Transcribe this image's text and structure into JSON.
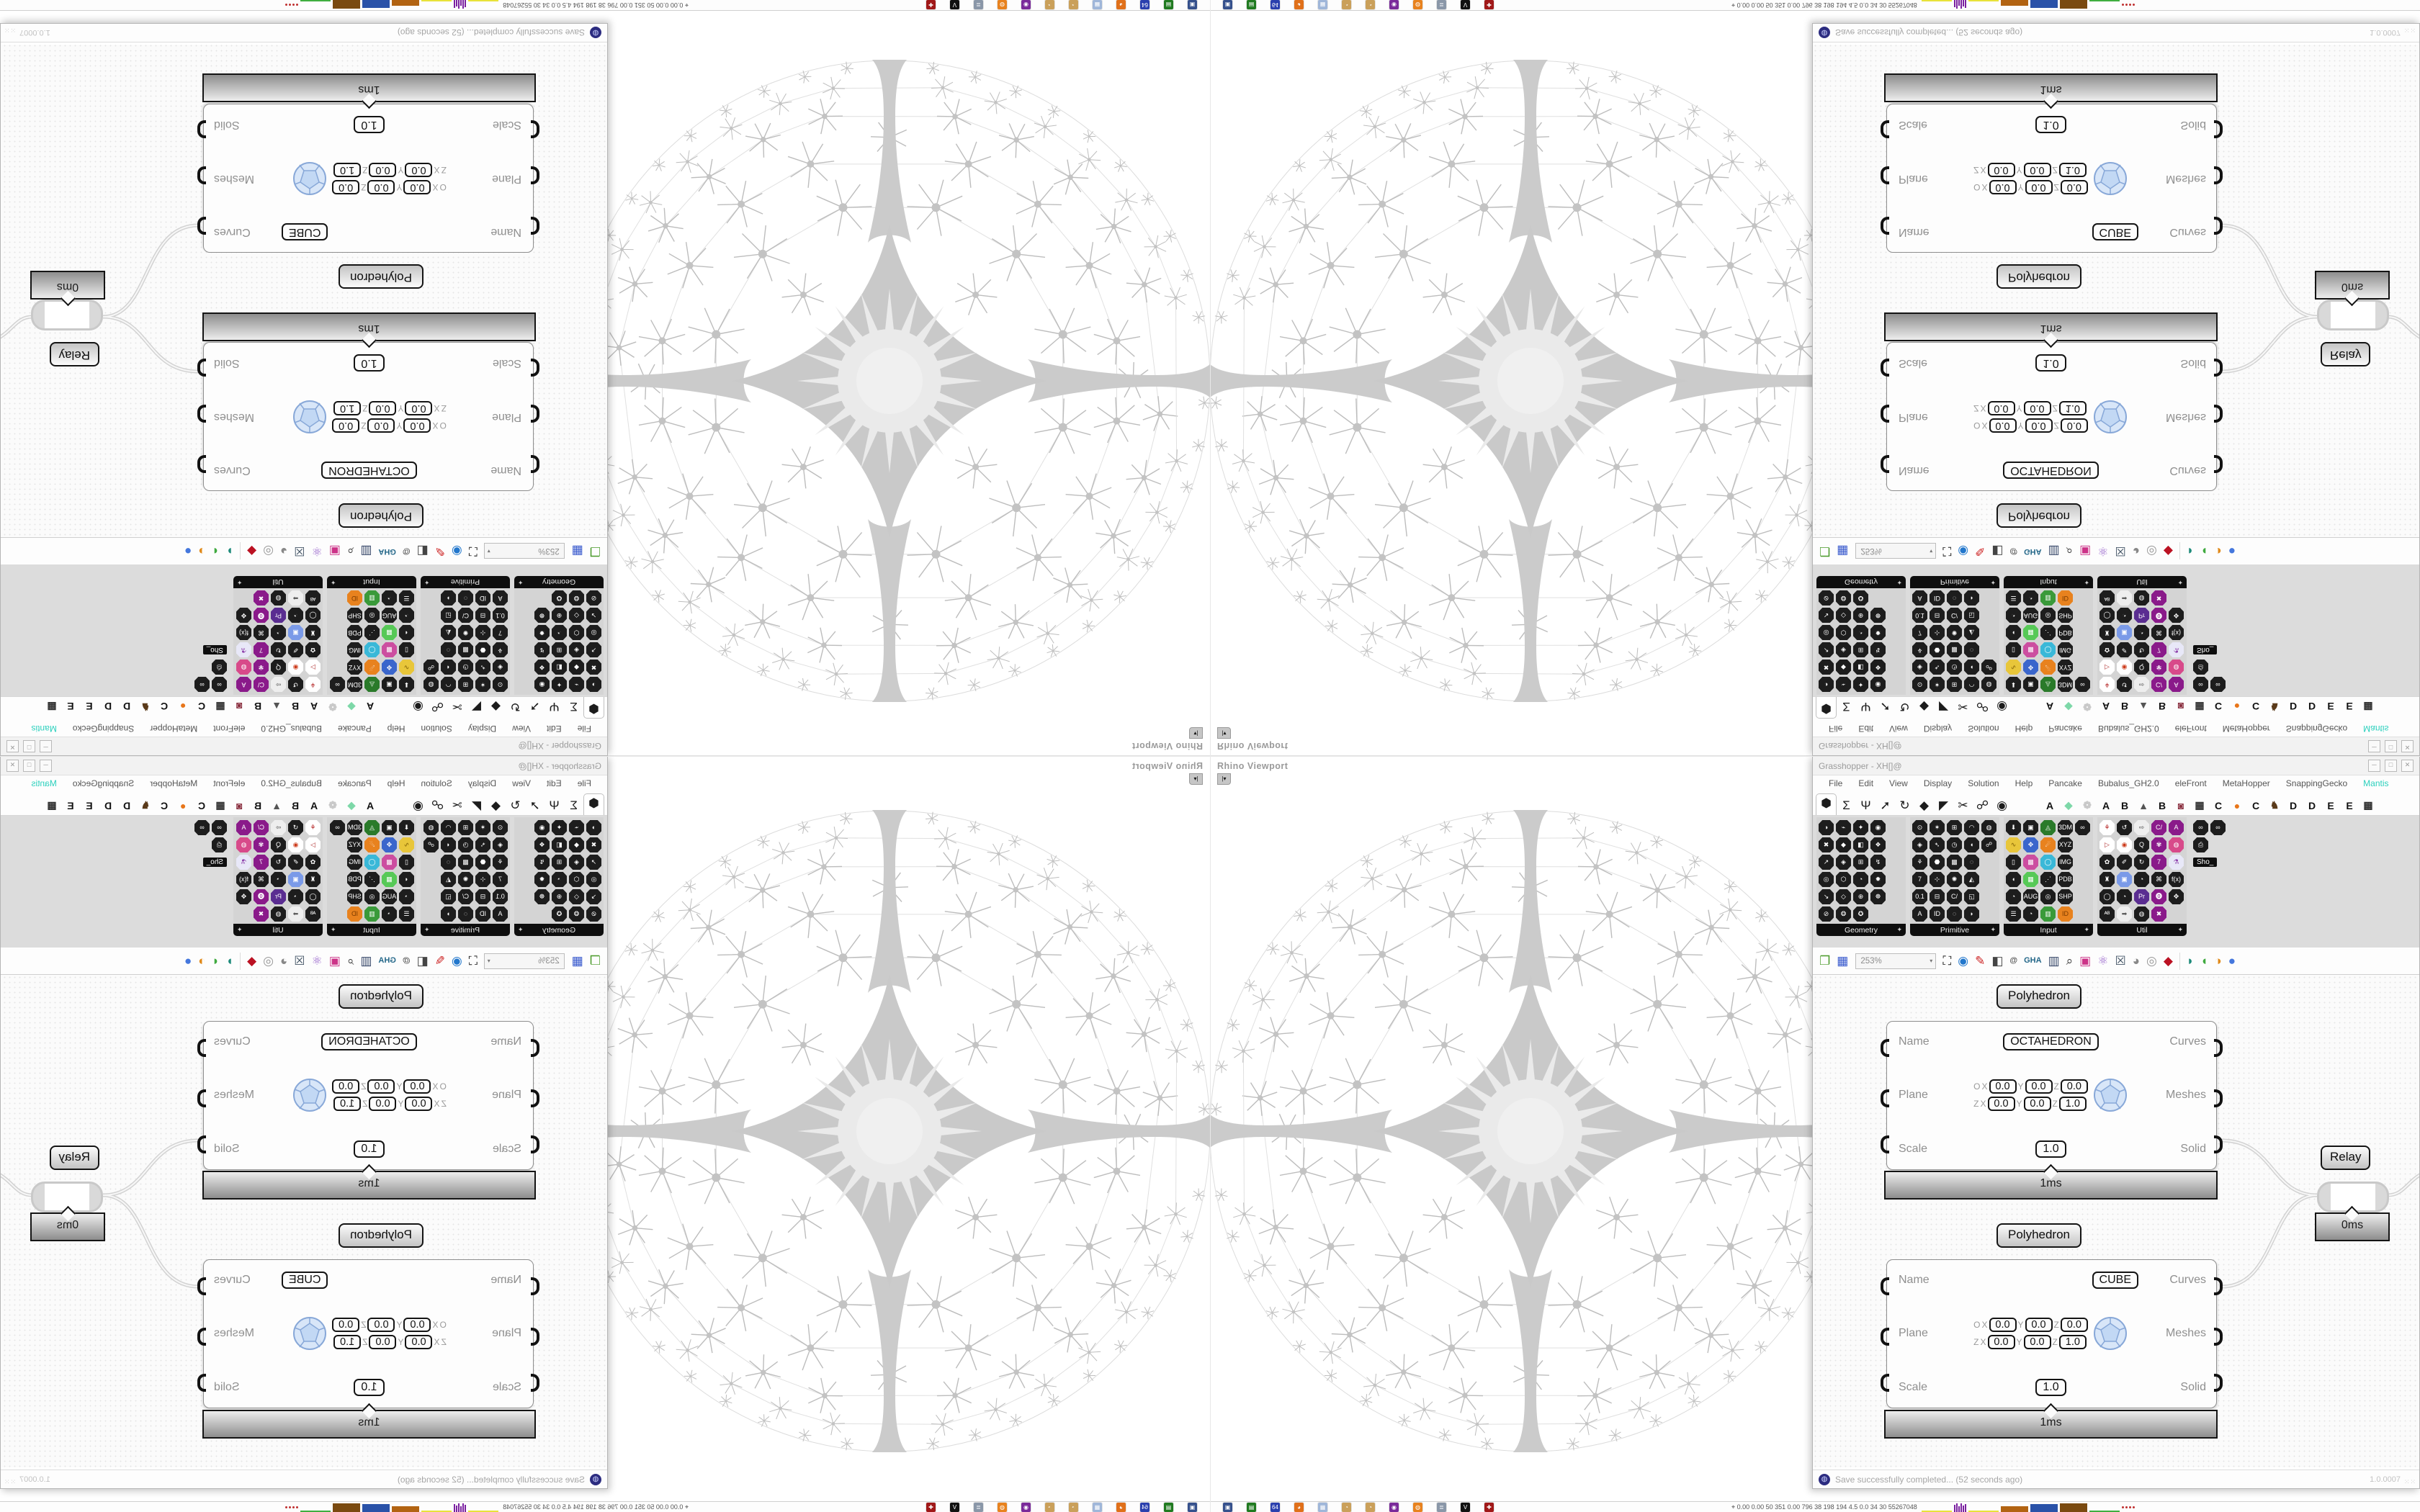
{
  "grasshopper": {
    "title": "Grasshopper - XH[]@",
    "window_buttons": [
      "─",
      "□",
      "✕"
    ],
    "menu": [
      "File",
      "Edit",
      "View",
      "Display",
      "Solution",
      "Help",
      "Pancake",
      "Bubalus_GH2.0",
      "eleFront",
      "MetaHopper",
      "SnappingGecko",
      "Mantis"
    ],
    "menu_highlight_item": "Mantis",
    "menu_highlight_color": "#2bd0bd",
    "menu_right": "XH[].@",
    "tabs_left": [
      "⬢",
      "Σ",
      "Ψ",
      "➚",
      "↻",
      "◆",
      "◤",
      "✂",
      "☍",
      "◉"
    ],
    "tabs_right": [
      {
        "g": "A",
        "c": "#111111"
      },
      {
        "g": "◆",
        "c": "#7dd8a8"
      },
      {
        "g": "❁",
        "c": "#c9c9c9"
      },
      {
        "g": "A",
        "c": "#111111"
      },
      {
        "g": "B",
        "c": "#111111"
      },
      {
        "g": "▲",
        "c": "#555555"
      },
      {
        "g": "B",
        "c": "#111111"
      },
      {
        "g": "◙",
        "c": "#8a3040"
      },
      {
        "g": "▦",
        "c": "#333333"
      },
      {
        "g": "C",
        "c": "#111111"
      },
      {
        "g": "●",
        "c": "#e8761a"
      },
      {
        "g": "C",
        "c": "#111111"
      },
      {
        "g": "♞",
        "c": "#5a3a1a"
      },
      {
        "g": "D",
        "c": "#111111"
      },
      {
        "g": "D",
        "c": "#111111"
      },
      {
        "g": "E",
        "c": "#111111"
      },
      {
        "g": "E",
        "c": "#111111"
      },
      {
        "g": "▩",
        "c": "#333333"
      }
    ],
    "palettes": [
      {
        "name": "Geometry",
        "icons": [
          "◑",
          "⌁",
          "✦",
          "◉",
          "",
          "✖",
          "◆",
          "◧",
          "❖",
          "",
          "↗",
          "◈",
          "⊞",
          "↯",
          "",
          "◎",
          "⬡",
          "◔",
          "✹",
          "",
          "↘",
          "◇",
          "⊕",
          "☸",
          "",
          "⊘",
          "❂",
          "✪",
          "",
          ""
        ]
      },
      {
        "name": "Primitive",
        "icons": [
          "⊙",
          "✶",
          "⊞",
          "◠",
          "◍",
          "◈",
          "➴",
          "◷",
          "◖",
          "☍",
          "⚘",
          "⬣",
          "▩",
          "◌",
          "",
          "7",
          "⊹",
          "✺",
          "◭",
          "",
          "0.1",
          "⊟",
          "C/",
          "◱",
          "",
          "A",
          "ID",
          "◌",
          "◗",
          ""
        ]
      },
      {
        "name": "Input",
        "icons": [
          "⬇",
          "▣",
          "◬|#2a7a2a",
          "3DM",
          "∞",
          "∿|#e8c63a|#7a5a00",
          "✥|#3a66cc",
          "☄|#e8821e",
          "XYZ",
          "",
          "▯",
          "▩|#cc4da0",
          "◯|#3ab8d8",
          "IMG",
          "",
          "◖",
          "▦|#57c957",
          "⋰",
          "PDB",
          "",
          "◔",
          "AUG",
          "◎",
          "SHP",
          "",
          "☰",
          "◔",
          "▥|#3a9a3a",
          "ID|#e8821e|#7a3a00",
          ""
        ]
      },
      {
        "name": "Util",
        "icons": [
          "⚘|#fff|#b01818",
          "↺",
          "⇨|#eee|#555",
          "C/|#8a1a8a",
          "A|#8a1a8a",
          "▷|#fff|#b03030",
          "◉|#fff|#cc3a1a",
          "Q",
          "✾|#8a1a8a",
          "◍|#d84a8a",
          "✿",
          "✐",
          "↻",
          "7|#8a1a8a",
          "⚗|#e8e8f8|#8a3aa8",
          "♜",
          "▣|#7a9ae8",
          "◔",
          "⌘",
          "f(x)",
          "◯",
          "◔",
          "Pr|#5a2d91",
          "⓿|#8a1a8a",
          "✥",
          "ᴬᴮ",
          "➡|#eee|#555",
          "◍",
          "✖|#8a1a8a",
          ""
        ]
      }
    ],
    "mini_palette": {
      "icons": [
        "∞",
        "∞",
        "⎙"
      ],
      "label": "Sho_"
    },
    "canvas_toolbar": {
      "zoom_value": "253%",
      "icons": [
        {
          "name": "open-file-icon",
          "g": "❐",
          "c": "#4a9a2a"
        },
        {
          "name": "save-file-icon",
          "g": "▦",
          "c": "#3355cc"
        },
        {
          "name": "zoom-extents-icon",
          "g": "⛶",
          "c": "#1a1a1a"
        },
        {
          "name": "preview-eye-icon",
          "g": "◉",
          "c": "#2277cc"
        },
        {
          "name": "sketch-pen-icon",
          "g": "✎",
          "c": "#cc2222"
        },
        {
          "name": "exit-door-icon",
          "g": "◧",
          "c": "#444444"
        },
        {
          "name": "at-box-icon",
          "g": "@",
          "c": "#555555"
        },
        {
          "name": "gha-icon",
          "g": "GHA",
          "c": "#226688"
        },
        {
          "name": "window-icon",
          "g": "▥",
          "c": "#334466"
        },
        {
          "name": "find-icon",
          "g": "⌕",
          "c": "#333333"
        },
        {
          "name": "help-box-icon",
          "g": "▣",
          "c": "#cc3388"
        },
        {
          "name": "bulb-icon",
          "g": "⚛",
          "c": "#9966cc"
        },
        {
          "name": "wires-icon",
          "g": "☒",
          "c": "#445566"
        },
        {
          "name": "spheres-icon",
          "g": "◕",
          "c": "#888888"
        },
        {
          "name": "rings-icon",
          "g": "◎",
          "c": "#999999"
        },
        {
          "name": "gem-icon",
          "g": "◆",
          "c": "#bb1122"
        },
        {
          "name": "blob-teal-icon",
          "g": "◗",
          "c": "#1d8a7a"
        },
        {
          "name": "blob-green-icon",
          "g": "◖",
          "c": "#3faa3f"
        },
        {
          "name": "half-orange-icon",
          "g": "◑",
          "c": "#e08a1a"
        },
        {
          "name": "ball-blue-icon",
          "g": "●",
          "c": "#4477dd"
        }
      ]
    },
    "components": [
      {
        "tag": "Polyhedron",
        "time": "1ms",
        "name_label": "Name",
        "plane_label": "Plane",
        "scale_label": "Scale",
        "out1": "Curves",
        "out2": "Meshes",
        "out3": "Solid",
        "name_value": "OCTAHEDRON",
        "scale_value": "1.0",
        "plane": {
          "row1_label": "O",
          "row2_label": "Z",
          "ax1": "X",
          "ax2": "Y",
          "ax3": "Z",
          "row1": [
            "0.0",
            "0.0",
            "0.0"
          ],
          "row2": [
            "0.0",
            "0.0",
            "1.0"
          ]
        }
      },
      {
        "tag": "Polyhedron",
        "time": "1ms",
        "name_label": "Name",
        "plane_label": "Plane",
        "scale_label": "Scale",
        "out1": "Curves",
        "out2": "Meshes",
        "out3": "Solid",
        "name_value": "CUBE",
        "scale_value": "1.0",
        "plane": {
          "row1_label": "O",
          "row2_label": "Z",
          "ax1": "X",
          "ax2": "Y",
          "ax3": "Z",
          "row1": [
            "0.0",
            "0.0",
            "0.0"
          ],
          "row2": [
            "0.0",
            "0.0",
            "1.0"
          ]
        }
      }
    ],
    "relay": {
      "tag": "Relay",
      "time": "0ms"
    },
    "status": {
      "message": "Save successfully completed... (52 seconds ago)",
      "version": "1.0.0007",
      "grip": "⁙⁙"
    }
  },
  "rhino": {
    "viewport_label": "Rhino Viewport",
    "viewport_tab_glyph": "|▾"
  },
  "taskbar": {
    "icons": [
      {
        "name": "monitor-app-icon",
        "g": "▣",
        "c": "#35508c"
      },
      {
        "name": "green-card-app-icon",
        "g": "▤",
        "c": "#1f7a1f"
      },
      {
        "name": "floppy64-app-icon",
        "g": "64",
        "c": "#2a3fae"
      },
      {
        "name": "firefox-app-icon",
        "g": "◕",
        "c": "#e0701a"
      },
      {
        "name": "calculator-app-icon",
        "g": "▦",
        "c": "#9fb6d9"
      },
      {
        "name": "palette-app-icon",
        "g": "◔",
        "c": "#caa05a"
      },
      {
        "name": "palette2-app-icon",
        "g": "◔",
        "c": "#caa05a"
      },
      {
        "name": "owl-app-icon",
        "g": "◉",
        "c": "#7a2a9a"
      },
      {
        "name": "blender-app-icon",
        "g": "◍",
        "c": "#e8821e"
      },
      {
        "name": "scroll-app-icon",
        "g": "≣",
        "c": "#8a97a8"
      },
      {
        "name": "vray-app-icon",
        "g": "V",
        "c": "#111111"
      },
      {
        "name": "red-badge-app-icon",
        "g": "✚",
        "c": "#a01818"
      }
    ],
    "monitor_text": "⌖  0.00 0.00   50   351  0.00  796   38   198   194   4.5   0.0   34   30   55267048",
    "charts": [
      {
        "type": "strip",
        "c": "#e8e23a"
      },
      {
        "type": "bars",
        "c": "#7a1fa0",
        "heights": [
          10,
          12,
          8,
          12,
          9,
          11
        ]
      },
      {
        "type": "strip",
        "c": "#e8e23a"
      },
      {
        "type": "box",
        "c": "#b26312",
        "h": 8
      },
      {
        "type": "box",
        "c": "#2a52a8",
        "h": 11
      },
      {
        "type": "box",
        "c": "#7a4a10",
        "h": 12
      },
      {
        "type": "strip",
        "c": "#3fae3f"
      },
      {
        "type": "dots",
        "c": "#c03030"
      }
    ]
  }
}
